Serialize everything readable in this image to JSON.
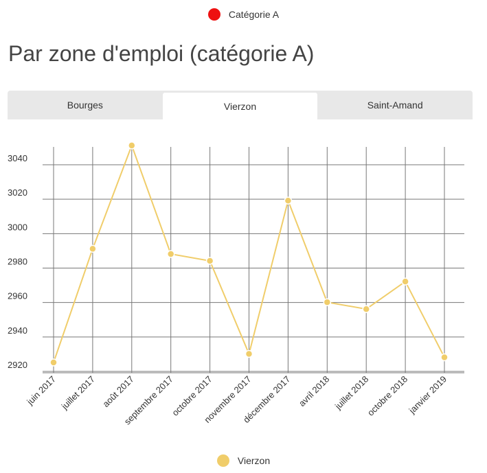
{
  "legend_top": {
    "label": "Catégorie A",
    "color": "#ee1111"
  },
  "title": "Par zone d'emploi (catégorie A)",
  "tabs": [
    {
      "label": "Bourges",
      "active": false
    },
    {
      "label": "Vierzon",
      "active": true
    },
    {
      "label": "Saint-Amand",
      "active": false
    }
  ],
  "chart_data": {
    "type": "line",
    "categories": [
      "juin 2017",
      "juillet 2017",
      "août 2017",
      "septembre 2017",
      "octobre 2017",
      "novembre 2017",
      "décembre 2017",
      "avril 2018",
      "juillet 2018",
      "octobre 2018",
      "janvier 2019"
    ],
    "series": [
      {
        "name": "Vierzon",
        "color": "#f0cd6a",
        "values": [
          2922,
          2988,
          3048,
          2985,
          2981,
          2927,
          3016,
          2957,
          2953,
          2969,
          2925
        ]
      }
    ],
    "yticks": [
      2920,
      2940,
      2960,
      2980,
      3000,
      3020,
      3040
    ],
    "ylim": [
      2916,
      3048
    ],
    "grid": true,
    "legend_position": "bottom"
  }
}
